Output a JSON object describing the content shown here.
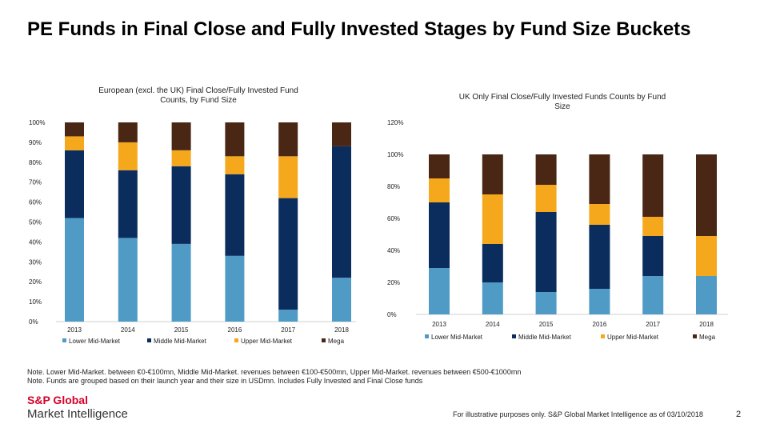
{
  "title": "PE Funds in Final Close and Fully Invested Stages by Fund Size Buckets",
  "colors": {
    "lower_mid": "#4f9bc6",
    "middle_mid": "#0b2d5e",
    "upper_mid": "#f5a81c",
    "mega": "#4a2714",
    "brand_red": "#d6002a"
  },
  "chart_data": [
    {
      "type": "bar",
      "stacked": true,
      "title": "European (excl. the UK) Final Close/Fully Invested Fund Counts, by Fund Size",
      "categories": [
        "2013",
        "2014",
        "2015",
        "2016",
        "2017",
        "2018"
      ],
      "y_ticks": [
        "0%",
        "10%",
        "20%",
        "30%",
        "40%",
        "50%",
        "60%",
        "70%",
        "80%",
        "90%",
        "100%"
      ],
      "ylim": [
        0,
        100
      ],
      "series": [
        {
          "name": "Lower Mid-Market",
          "values": [
            52,
            42,
            39,
            33,
            6,
            22
          ]
        },
        {
          "name": "Middle Mid-Market",
          "values": [
            34,
            34,
            39,
            41,
            56,
            66
          ]
        },
        {
          "name": "Upper Mid-Market",
          "values": [
            7,
            14,
            8,
            9,
            21,
            0
          ]
        },
        {
          "name": "Mega",
          "values": [
            7,
            10,
            14,
            17,
            17,
            12
          ]
        }
      ],
      "legend": "bottom"
    },
    {
      "type": "bar",
      "stacked": true,
      "title": "UK Only Final Close/Fully Invested Funds Counts by Fund Size",
      "categories": [
        "2013",
        "2014",
        "2015",
        "2016",
        "2017",
        "2018"
      ],
      "y_ticks": [
        "0%",
        "20%",
        "40%",
        "60%",
        "80%",
        "100%",
        "120%"
      ],
      "ylim": [
        0,
        120
      ],
      "series": [
        {
          "name": "Lower Mid-Market",
          "values": [
            29,
            20,
            14,
            16,
            24,
            24
          ]
        },
        {
          "name": "Middle Mid-Market",
          "values": [
            41,
            24,
            50,
            40,
            25,
            0
          ]
        },
        {
          "name": "Upper Mid-Market",
          "values": [
            15,
            31,
            17,
            13,
            12,
            25
          ]
        },
        {
          "name": "Mega",
          "values": [
            15,
            25,
            19,
            31,
            39,
            51
          ]
        }
      ],
      "legend": "bottom"
    }
  ],
  "notes": [
    "Note. Lower Mid-Market. between €0-€100mn, Middle Mid-Market. revenues between €100-€500mn, Upper Mid-Market. revenues between €500-€1000mn",
    "Note. Funds are grouped based on their launch year and their size in USDmn. Includes Fully Invested and Final Close funds"
  ],
  "brand": {
    "name": "S&P Global",
    "sub": "Market Intelligence"
  },
  "footer": "For illustrative purposes only. S&P Global Market Intelligence as of 03/10/2018",
  "page_number": "2"
}
